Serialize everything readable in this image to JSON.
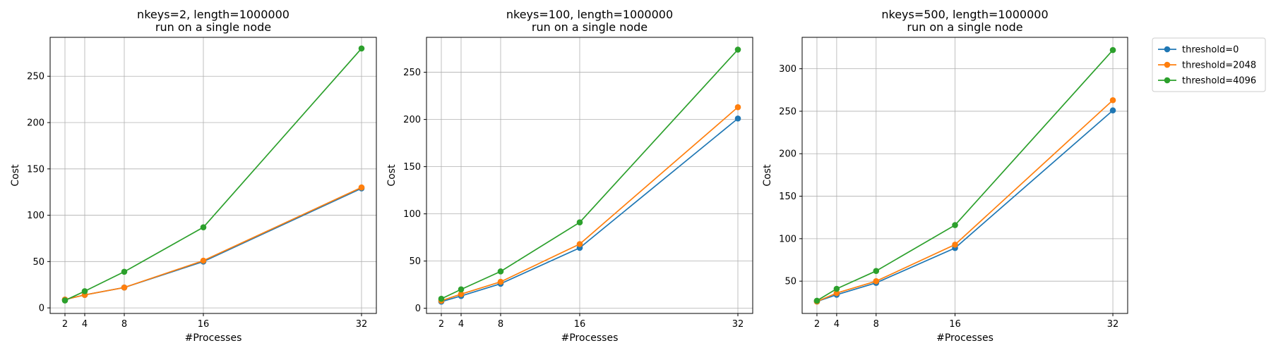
{
  "chart_data": [
    {
      "type": "line",
      "title": "nkeys=2, length=1000000",
      "subtitle": "run on a single node",
      "xlabel": "#Processes",
      "ylabel": "Cost",
      "x": [
        2,
        4,
        8,
        16,
        32
      ],
      "xticks": [
        2,
        4,
        8,
        16,
        32
      ],
      "xlim": [
        0.5,
        33.5
      ],
      "yticks": [
        0,
        50,
        100,
        150,
        200,
        250
      ],
      "ylim": [
        -6,
        292
      ],
      "grid": true,
      "series": [
        {
          "name": "threshold=0",
          "color": "#1f77b4",
          "values": [
            9,
            14,
            22,
            50,
            129
          ]
        },
        {
          "name": "threshold=2048",
          "color": "#ff7f0e",
          "values": [
            9,
            14,
            22,
            51,
            130
          ]
        },
        {
          "name": "threshold=4096",
          "color": "#2ca02c",
          "values": [
            8,
            18,
            39,
            87,
            280
          ]
        }
      ]
    },
    {
      "type": "line",
      "title": "nkeys=100, length=1000000",
      "subtitle": "run on a single node",
      "xlabel": "#Processes",
      "ylabel": "Cost",
      "x": [
        2,
        4,
        8,
        16,
        32
      ],
      "xticks": [
        2,
        4,
        8,
        16,
        32
      ],
      "xlim": [
        0.5,
        33.5
      ],
      "yticks": [
        0,
        50,
        100,
        150,
        200,
        250
      ],
      "ylim": [
        -5.5,
        287
      ],
      "grid": true,
      "series": [
        {
          "name": "threshold=0",
          "color": "#1f77b4",
          "values": [
            7,
            13,
            26,
            64,
            201
          ]
        },
        {
          "name": "threshold=2048",
          "color": "#ff7f0e",
          "values": [
            8,
            15,
            28,
            68,
            213
          ]
        },
        {
          "name": "threshold=4096",
          "color": "#2ca02c",
          "values": [
            10,
            20,
            39,
            91,
            274
          ]
        }
      ]
    },
    {
      "type": "line",
      "title": "nkeys=500, length=1000000",
      "subtitle": "run on a single node",
      "xlabel": "#Processes",
      "ylabel": "Cost",
      "x": [
        2,
        4,
        8,
        16,
        32
      ],
      "xticks": [
        2,
        4,
        8,
        16,
        32
      ],
      "xlim": [
        0.5,
        33.5
      ],
      "yticks": [
        50,
        100,
        150,
        200,
        250,
        300
      ],
      "ylim": [
        12,
        337
      ],
      "grid": true,
      "legend": "outside-right",
      "series": [
        {
          "name": "threshold=0",
          "color": "#1f77b4",
          "values": [
            26,
            34,
            48,
            89,
            251
          ]
        },
        {
          "name": "threshold=2048",
          "color": "#ff7f0e",
          "values": [
            26,
            36,
            50,
            93,
            263
          ]
        },
        {
          "name": "threshold=4096",
          "color": "#2ca02c",
          "values": [
            27,
            41,
            62,
            116,
            322
          ]
        }
      ]
    }
  ]
}
